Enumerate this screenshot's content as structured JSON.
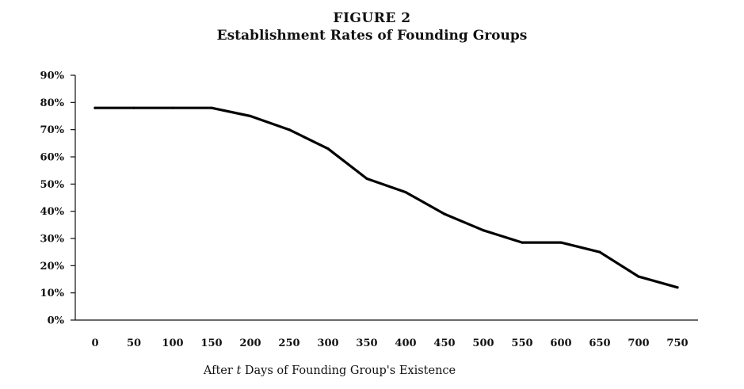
{
  "figure": {
    "label": "FIGURE 2",
    "title": "Establishment Rates of Founding Groups"
  },
  "chart_data": {
    "type": "line",
    "title": "Establishment Rates of Founding Groups",
    "xlabel_parts": [
      "After ",
      "t",
      " Days of Founding Group's Existence"
    ],
    "ylabel": "",
    "x": [
      0,
      50,
      100,
      150,
      200,
      250,
      300,
      350,
      400,
      450,
      500,
      550,
      600,
      650,
      700,
      750
    ],
    "x_tick_labels": [
      "0",
      "50",
      "100",
      "150",
      "200",
      "250",
      "300",
      "350",
      "400",
      "450",
      "500",
      "550",
      "600",
      "650",
      "700",
      "750"
    ],
    "y_ticks": [
      0,
      10,
      20,
      30,
      40,
      50,
      60,
      70,
      80,
      90
    ],
    "y_tick_labels": [
      "0%",
      "10%",
      "20%",
      "30%",
      "40%",
      "50%",
      "60%",
      "70%",
      "80%",
      "90%"
    ],
    "ylim": [
      0,
      90
    ],
    "grid": false,
    "series": [
      {
        "values": [
          78,
          78,
          78,
          78,
          75,
          70,
          63,
          52,
          47,
          39,
          33,
          28.5,
          28.5,
          25,
          16,
          12
        ]
      }
    ],
    "line_color": "#000000"
  }
}
